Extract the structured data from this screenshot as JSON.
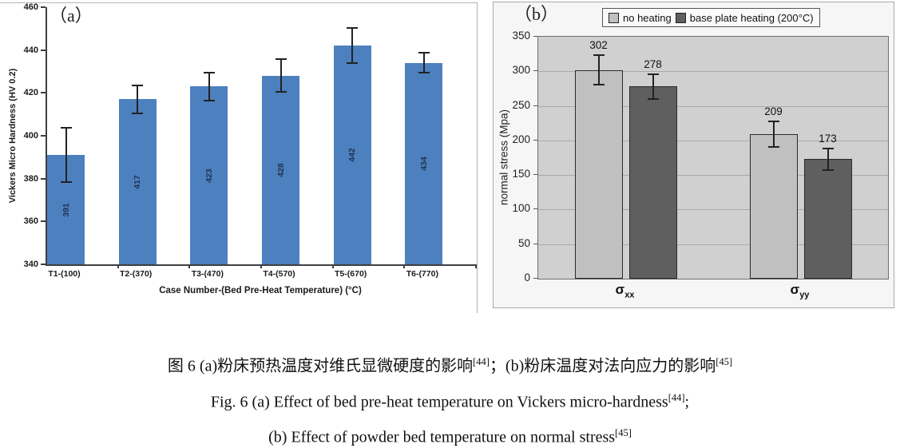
{
  "chart_data": [
    {
      "type": "bar",
      "panel_label": "（a）",
      "xlabel": "Case Number-(Bed Pre-Heat Temperature) (°C)",
      "ylabel": "Vickers Micro Hardness (HV 0.2)",
      "ylim": [
        340,
        460
      ],
      "yticks": [
        340,
        360,
        380,
        400,
        420,
        440,
        460
      ],
      "grid": false,
      "categories": [
        "T1-(100)",
        "T2-(370)",
        "T3-(470)",
        "T4-(570)",
        "T5-(670)",
        "T6-(770)"
      ],
      "values": [
        391,
        417,
        423,
        428,
        442,
        434
      ],
      "errors": [
        13,
        7,
        7,
        8,
        8.5,
        5
      ],
      "bar_color": "#4d80bf",
      "value_label_color": "#1f3350",
      "axis_color": "#3f3f3f"
    },
    {
      "type": "bar",
      "panel_label": "（b）",
      "xlabel": "",
      "ylabel": "normal stress (Mpa)",
      "ylim": [
        0,
        350
      ],
      "yticks": [
        0,
        50,
        100,
        150,
        200,
        250,
        300,
        350
      ],
      "grid": true,
      "plot_bg": "#d0d0d0",
      "gridline_color": "#a9a9a9",
      "legend_position": "top",
      "categories": [
        {
          "symbol": "σ",
          "subscript": "xx"
        },
        {
          "symbol": "σ",
          "subscript": "yy"
        }
      ],
      "series": [
        {
          "name": "no heating",
          "color": "#c0c0c0",
          "values": [
            302,
            209
          ],
          "errors": [
            23,
            20
          ]
        },
        {
          "name": "base plate heating (200°C)",
          "color": "#5f5f5f",
          "values": [
            278,
            173
          ],
          "errors": [
            19,
            17
          ]
        }
      ]
    }
  ],
  "caption": {
    "line1": {
      "pre": "图 6 (a)粉床预热温度对维氏显微硬度的影响",
      "sup1": "[44]",
      "mid": "；(b)粉床温度对法向应力的影响",
      "sup2": "[45]"
    },
    "line2": {
      "pre": "Fig. 6 (a) Effect of bed pre-heat temperature on Vickers micro-hardness",
      "sup": "[44]",
      "post": ";"
    },
    "line3": {
      "pre": "(b) Effect of powder bed temperature on normal stress",
      "sup": "[45]"
    }
  }
}
